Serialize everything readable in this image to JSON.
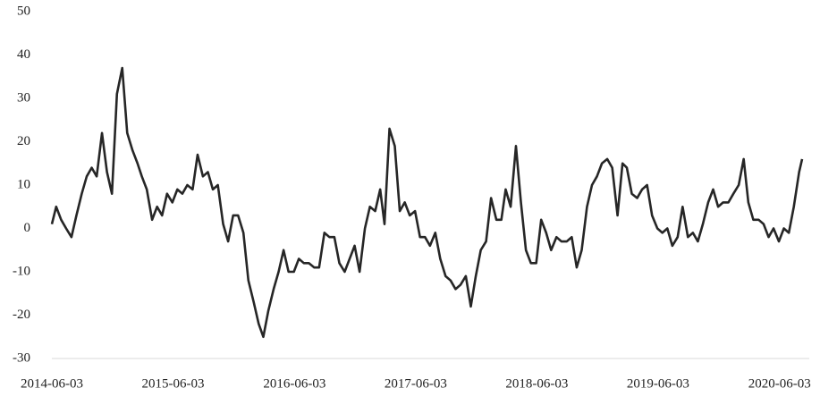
{
  "chart_data": {
    "type": "line",
    "x": [
      "2014-06-03",
      "2014-06-16",
      "2014-07-01",
      "2014-07-16",
      "2014-08-01",
      "2014-08-16",
      "2014-09-01",
      "2014-09-16",
      "2014-10-01",
      "2014-10-16",
      "2014-11-01",
      "2014-11-16",
      "2014-12-01",
      "2014-12-16",
      "2015-01-01",
      "2015-01-16",
      "2015-02-01",
      "2015-02-16",
      "2015-03-01",
      "2015-03-16",
      "2015-04-01",
      "2015-04-16",
      "2015-05-01",
      "2015-05-16",
      "2015-06-01",
      "2015-06-16",
      "2015-07-01",
      "2015-07-16",
      "2015-08-01",
      "2015-08-16",
      "2015-09-01",
      "2015-09-16",
      "2015-10-01",
      "2015-10-16",
      "2015-11-01",
      "2015-11-16",
      "2015-12-01",
      "2015-12-16",
      "2016-01-01",
      "2016-01-16",
      "2016-02-01",
      "2016-02-16",
      "2016-03-01",
      "2016-03-16",
      "2016-04-01",
      "2016-04-16",
      "2016-05-01",
      "2016-05-16",
      "2016-06-01",
      "2016-06-16",
      "2016-07-01",
      "2016-07-16",
      "2016-08-01",
      "2016-08-16",
      "2016-09-01",
      "2016-09-16",
      "2016-10-01",
      "2016-10-16",
      "2016-11-01",
      "2016-11-16",
      "2016-12-01",
      "2016-12-16",
      "2017-01-01",
      "2017-01-16",
      "2017-02-01",
      "2017-02-16",
      "2017-03-01",
      "2017-03-16",
      "2017-04-01",
      "2017-04-16",
      "2017-05-01",
      "2017-05-16",
      "2017-06-01",
      "2017-06-16",
      "2017-07-01",
      "2017-07-16",
      "2017-08-01",
      "2017-08-16",
      "2017-09-01",
      "2017-09-16",
      "2017-10-01",
      "2017-10-16",
      "2017-11-01",
      "2017-11-16",
      "2017-12-01",
      "2017-12-16",
      "2018-01-01",
      "2018-01-16",
      "2018-02-01",
      "2018-02-16",
      "2018-03-01",
      "2018-03-16",
      "2018-04-01",
      "2018-04-16",
      "2018-05-01",
      "2018-05-16",
      "2018-06-01",
      "2018-06-16",
      "2018-07-01",
      "2018-07-16",
      "2018-08-01",
      "2018-08-16",
      "2018-09-01",
      "2018-09-16",
      "2018-10-01",
      "2018-10-16",
      "2018-11-01",
      "2018-11-16",
      "2018-12-01",
      "2018-12-16",
      "2019-01-01",
      "2019-01-16",
      "2019-02-01",
      "2019-02-16",
      "2019-03-01",
      "2019-03-16",
      "2019-04-01",
      "2019-04-16",
      "2019-05-01",
      "2019-05-16",
      "2019-06-01",
      "2019-06-16",
      "2019-07-01",
      "2019-07-16",
      "2019-08-01",
      "2019-08-16",
      "2019-09-01",
      "2019-09-16",
      "2019-10-01",
      "2019-10-16",
      "2019-11-01",
      "2019-11-16",
      "2019-12-01",
      "2019-12-16",
      "2020-01-01",
      "2020-01-16",
      "2020-02-01",
      "2020-02-16",
      "2020-03-01",
      "2020-03-16",
      "2020-04-01",
      "2020-04-16",
      "2020-05-01",
      "2020-05-16",
      "2020-06-01",
      "2020-06-16",
      "2020-07-01",
      "2020-07-16",
      "2020-08-01",
      "2020-08-10"
    ],
    "values": [
      1,
      5,
      2,
      0,
      -2,
      3,
      8,
      12,
      14,
      12,
      22,
      13,
      8,
      31,
      37,
      22,
      18,
      15,
      12,
      9,
      2,
      5,
      3,
      8,
      6,
      9,
      8,
      10,
      9,
      17,
      12,
      13,
      9,
      10,
      1,
      -3,
      3,
      3,
      -1,
      -12,
      -17,
      -22,
      -25,
      -19,
      -14,
      -10,
      -5,
      -10,
      -10,
      -7,
      -8,
      -8,
      -9,
      -9,
      -1,
      -2,
      -2,
      -8,
      -10,
      -7,
      -4,
      -10,
      0,
      5,
      4,
      9,
      1,
      23,
      19,
      4,
      6,
      3,
      4,
      -2,
      -2,
      -4,
      -1,
      -7,
      -11,
      -12,
      -14,
      -13,
      -11,
      -18,
      -11,
      -5,
      -3,
      7,
      2,
      2,
      9,
      5,
      19,
      6,
      -5,
      -8,
      -8,
      2,
      -1,
      -5,
      -2,
      -3,
      -3,
      -2,
      -9,
      -5,
      5,
      10,
      12,
      15,
      16,
      14,
      3,
      15,
      14,
      8,
      7,
      9,
      10,
      3,
      0,
      -1,
      0,
      -4,
      -2,
      5,
      -2,
      -1,
      -3,
      1,
      6,
      9,
      5,
      6,
      6,
      8,
      10,
      16,
      6,
      2,
      2,
      1,
      -2,
      0,
      -3,
      0,
      -1,
      5,
      13,
      16
    ],
    "color": "#262626",
    "xlim": [
      "2014-06-03",
      "2020-08-10"
    ],
    "xticks": [
      "2014-06-03",
      "2015-06-03",
      "2016-06-03",
      "2017-06-03",
      "2018-06-03",
      "2019-06-03",
      "2020-06-03"
    ],
    "ylim": [
      -30,
      50
    ],
    "yticks": [
      -30,
      -20,
      -10,
      0,
      10,
      20,
      30,
      40,
      50
    ],
    "grid": false
  }
}
